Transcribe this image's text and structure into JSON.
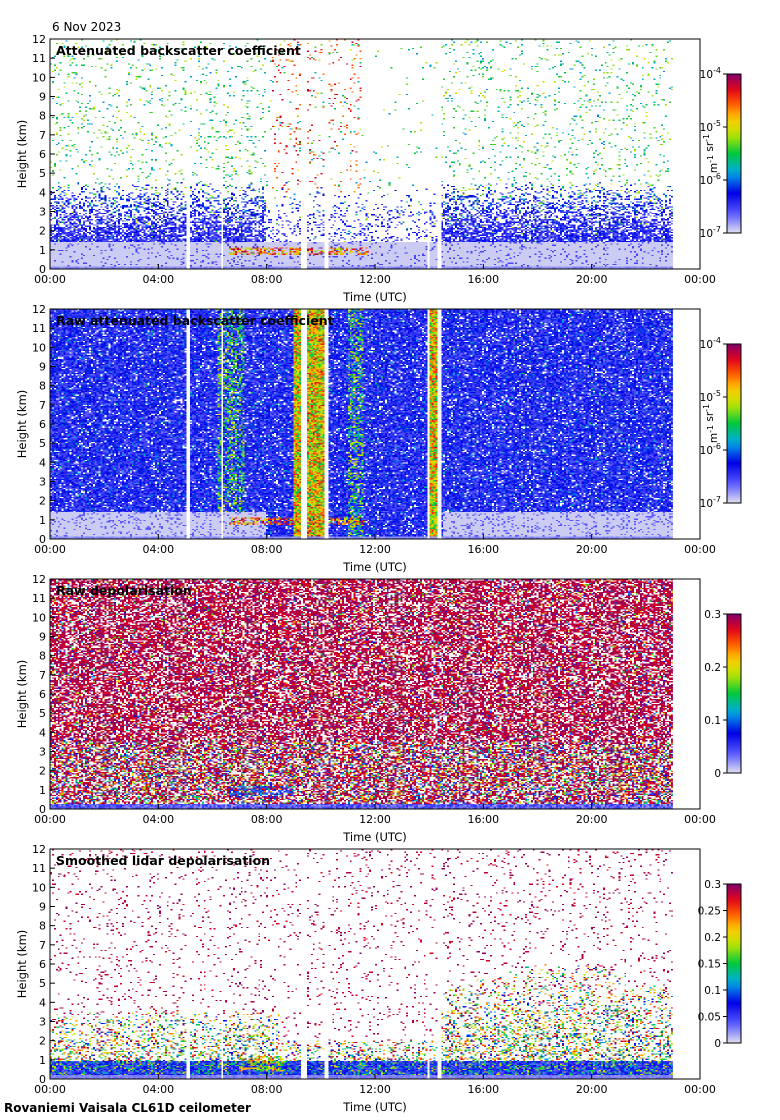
{
  "date": "6 Nov 2023",
  "footer": "Rovaniemi Vaisala CL61D ceilometer",
  "chart_data": [
    {
      "type": "heatmap",
      "title": "Attenuated backscatter coefficient",
      "xlabel": "Time (UTC)",
      "ylabel": "Height (km)",
      "x_ticks": [
        "00:00",
        "04:00",
        "08:00",
        "12:00",
        "16:00",
        "20:00",
        "00:00"
      ],
      "xlim_hours": [
        0,
        24
      ],
      "y_ticks": [
        "0",
        "1",
        "2",
        "3",
        "4",
        "5",
        "6",
        "7",
        "8",
        "9",
        "10",
        "11",
        "12"
      ],
      "ylim": [
        0,
        12
      ],
      "data_end_hour": 23.0,
      "colorbar": {
        "scale": "log",
        "range": [
          1e-07,
          0.0001
        ],
        "ticks": [
          "10^-7",
          "10^-6",
          "10^-5",
          "10^-4"
        ],
        "label": "m^-1 sr^-1"
      },
      "features": {
        "cloud_layer_km": [
          0.7,
          1.1
        ],
        "cloud_hours": [
          6.6,
          11.8
        ],
        "noise_top_km": 4.5
      }
    },
    {
      "type": "heatmap",
      "title": "Raw attenuated backscatter coefficient",
      "xlabel": "Time (UTC)",
      "ylabel": "Height (km)",
      "x_ticks": [
        "00:00",
        "04:00",
        "08:00",
        "12:00",
        "16:00",
        "20:00",
        "00:00"
      ],
      "xlim_hours": [
        0,
        24
      ],
      "y_ticks": [
        "0",
        "1",
        "2",
        "3",
        "4",
        "5",
        "6",
        "7",
        "8",
        "9",
        "10",
        "11",
        "12"
      ],
      "ylim": [
        0,
        12
      ],
      "data_end_hour": 23.0,
      "colorbar": {
        "scale": "log",
        "range": [
          1e-07,
          0.0001
        ],
        "ticks": [
          "10^-7",
          "10^-6",
          "10^-5",
          "10^-4"
        ],
        "label": "m^-1 sr^-1"
      },
      "features": {
        "bright_columns_hours": [
          9.5,
          14.2
        ],
        "cloud_layer_km": [
          0.7,
          1.1
        ]
      }
    },
    {
      "type": "heatmap",
      "title": "Raw depolarisation",
      "xlabel": "Time (UTC)",
      "ylabel": "Height (km)",
      "x_ticks": [
        "00:00",
        "04:00",
        "08:00",
        "12:00",
        "16:00",
        "20:00",
        "00:00"
      ],
      "xlim_hours": [
        0,
        24
      ],
      "y_ticks": [
        "0",
        "1",
        "2",
        "3",
        "4",
        "5",
        "6",
        "7",
        "8",
        "9",
        "10",
        "11",
        "12"
      ],
      "ylim": [
        0,
        12
      ],
      "data_end_hour": 23.0,
      "colorbar": {
        "scale": "linear",
        "range": [
          0,
          0.3
        ],
        "ticks": [
          "0",
          "0.1",
          "0.2",
          "0.3"
        ],
        "label": ""
      }
    },
    {
      "type": "heatmap",
      "title": "Smoothed lidar depolarisation",
      "xlabel": "Time (UTC)",
      "ylabel": "Height (km)",
      "x_ticks": [
        "00:00",
        "04:00",
        "08:00",
        "12:00",
        "16:00",
        "20:00",
        "00:00"
      ],
      "xlim_hours": [
        0,
        24
      ],
      "y_ticks": [
        "0",
        "1",
        "2",
        "3",
        "4",
        "5",
        "6",
        "7",
        "8",
        "9",
        "10",
        "11",
        "12"
      ],
      "ylim": [
        0,
        12
      ],
      "data_end_hour": 23.0,
      "colorbar": {
        "scale": "linear",
        "range": [
          0,
          0.3
        ],
        "ticks": [
          "0",
          "0.05",
          "0.1",
          "0.15",
          "0.2",
          "0.25",
          "0.3"
        ],
        "label": ""
      }
    }
  ]
}
